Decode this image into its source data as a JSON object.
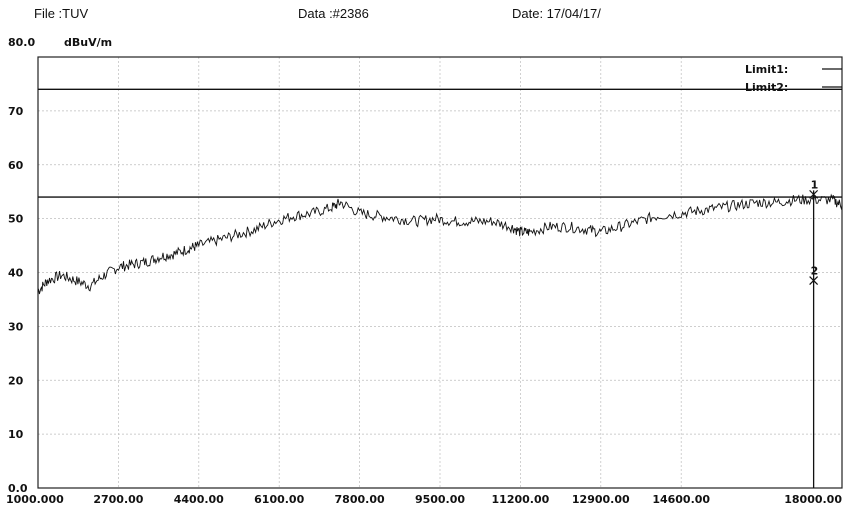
{
  "header": {
    "file": "File :TUV",
    "data": "Data :#2386",
    "date": "Date: 17/04/17/"
  },
  "chart_data": {
    "type": "line",
    "title": "",
    "xlabel": "",
    "ylabel": "dBuV/m",
    "ylim": [
      0,
      80
    ],
    "xlim": [
      1000,
      18000
    ],
    "y_ticks": [
      "80.0",
      "70",
      "60",
      "50",
      "40",
      "30",
      "20",
      "10",
      "0.0"
    ],
    "x_ticks": [
      "1000.000",
      "2700.00",
      "4400.00",
      "6100.00",
      "7800.00",
      "9500.00",
      "11200.00",
      "12900.00",
      "14600.00",
      "18000.00"
    ],
    "grid": true,
    "legend_position": "top-right",
    "limits": [
      {
        "name": "Limit1:",
        "value": 74
      },
      {
        "name": "Limit2:",
        "value": 54
      }
    ],
    "series": [
      {
        "x": [
          1000,
          1200,
          1500,
          1800,
          2100,
          2400,
          2700,
          3000,
          3300,
          3600,
          3900,
          4200,
          4400,
          4800,
          5200,
          5600,
          6000,
          6400,
          6800,
          7200,
          7400,
          7800,
          8200,
          8600,
          9000,
          9400,
          9800,
          10200,
          10600,
          11000,
          11200,
          11400,
          11800,
          12200,
          12600,
          12900,
          13300,
          13700,
          14100,
          14600,
          15000,
          15400,
          15800,
          16200,
          16600,
          17000,
          17400,
          17800,
          18000
        ],
        "y": [
          36.5,
          38.5,
          39.5,
          38.5,
          37.5,
          39.5,
          41,
          41.5,
          42,
          43,
          43.5,
          44.5,
          45,
          46,
          47,
          48,
          49.5,
          50.5,
          51,
          52,
          53,
          51,
          50.5,
          50,
          49.5,
          50,
          49.5,
          49.5,
          49.5,
          48.5,
          47.5,
          47.5,
          48.5,
          48.5,
          48,
          47.5,
          48.5,
          49.5,
          50.5,
          51,
          51.5,
          52,
          52.5,
          53,
          53,
          53.5,
          53.5,
          53.5,
          52.5
        ]
      }
    ],
    "markers": [
      {
        "label": "1",
        "x": 17400,
        "y": 54.5
      },
      {
        "label": "2",
        "x": 17400,
        "y": 38.5
      }
    ]
  }
}
